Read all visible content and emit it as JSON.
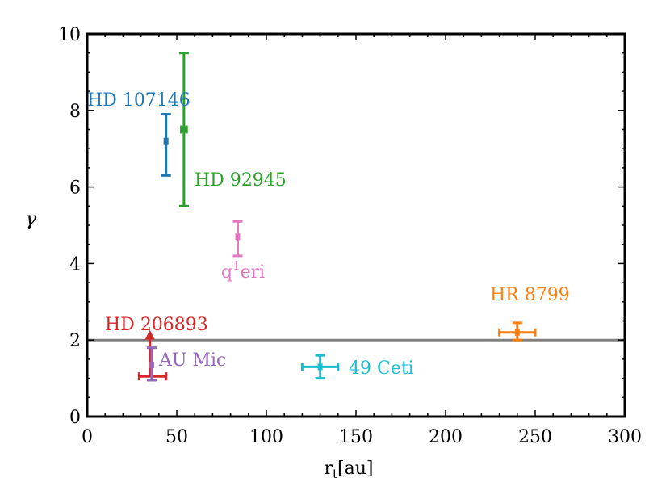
{
  "chart_data": {
    "type": "scatter",
    "title": "",
    "xlabel": "r",
    "xlabel_sub": "t",
    "xlabel_unit": "[au]",
    "ylabel": "γ",
    "xlim": [
      0,
      300
    ],
    "ylim": [
      0,
      10
    ],
    "xticks": [
      0,
      50,
      100,
      150,
      200,
      250,
      300
    ],
    "yticks": [
      0,
      2,
      4,
      6,
      8,
      10
    ],
    "xtick_labels": [
      "0",
      "50",
      "100",
      "150",
      "200",
      "250",
      "300"
    ],
    "ytick_labels": [
      "0",
      "2",
      "4",
      "6",
      "8",
      "10"
    ],
    "reference_line": {
      "y": 2,
      "color": "#808080"
    },
    "points": [
      {
        "name": "HD 107146",
        "x": 44,
        "y": 7.2,
        "yerr": [
          0.9,
          0.7
        ],
        "xerr": [
          0,
          0
        ],
        "color": "#1f77b4",
        "marker": "square",
        "label_text": "HD 107146"
      },
      {
        "name": "HD 92945",
        "x": 54,
        "y": 7.5,
        "yerr": [
          2.0,
          2.0
        ],
        "xerr": [
          1.5,
          1.5
        ],
        "color": "#2ca02c",
        "marker": "square",
        "label_text": "HD 92945"
      },
      {
        "name": "q1 eri",
        "x": 84,
        "y": 4.7,
        "yerr": [
          0.5,
          0.4
        ],
        "xerr": [
          0,
          0
        ],
        "color": "#e377c2",
        "marker": "square",
        "label_text": "q",
        "label_sup": "1",
        "label_rest": "eri"
      },
      {
        "name": "HR 8799",
        "x": 240,
        "y": 2.2,
        "yerr": [
          0.2,
          0.25
        ],
        "xerr": [
          10,
          10
        ],
        "color": "#ff7f0e",
        "marker": "square",
        "label_text": "HR 8799"
      },
      {
        "name": "HD 206893",
        "x": 35,
        "y": 1.05,
        "yerr": [
          0,
          1.05
        ],
        "xerr": [
          6,
          9
        ],
        "color": "#d62728",
        "marker": "lower-limit",
        "label_text": "HD 206893"
      },
      {
        "name": "AU Mic",
        "x": 36,
        "y": 1.35,
        "yerr": [
          0.4,
          0.45
        ],
        "xerr": [
          0,
          0
        ],
        "color": "#9467bd",
        "marker": "square",
        "label_text": "AU Mic"
      },
      {
        "name": "49 Ceti",
        "x": 130,
        "y": 1.3,
        "yerr": [
          0.3,
          0.3
        ],
        "xerr": [
          10,
          10
        ],
        "color": "#17becf",
        "marker": "square",
        "label_text": "49 Ceti"
      }
    ]
  }
}
